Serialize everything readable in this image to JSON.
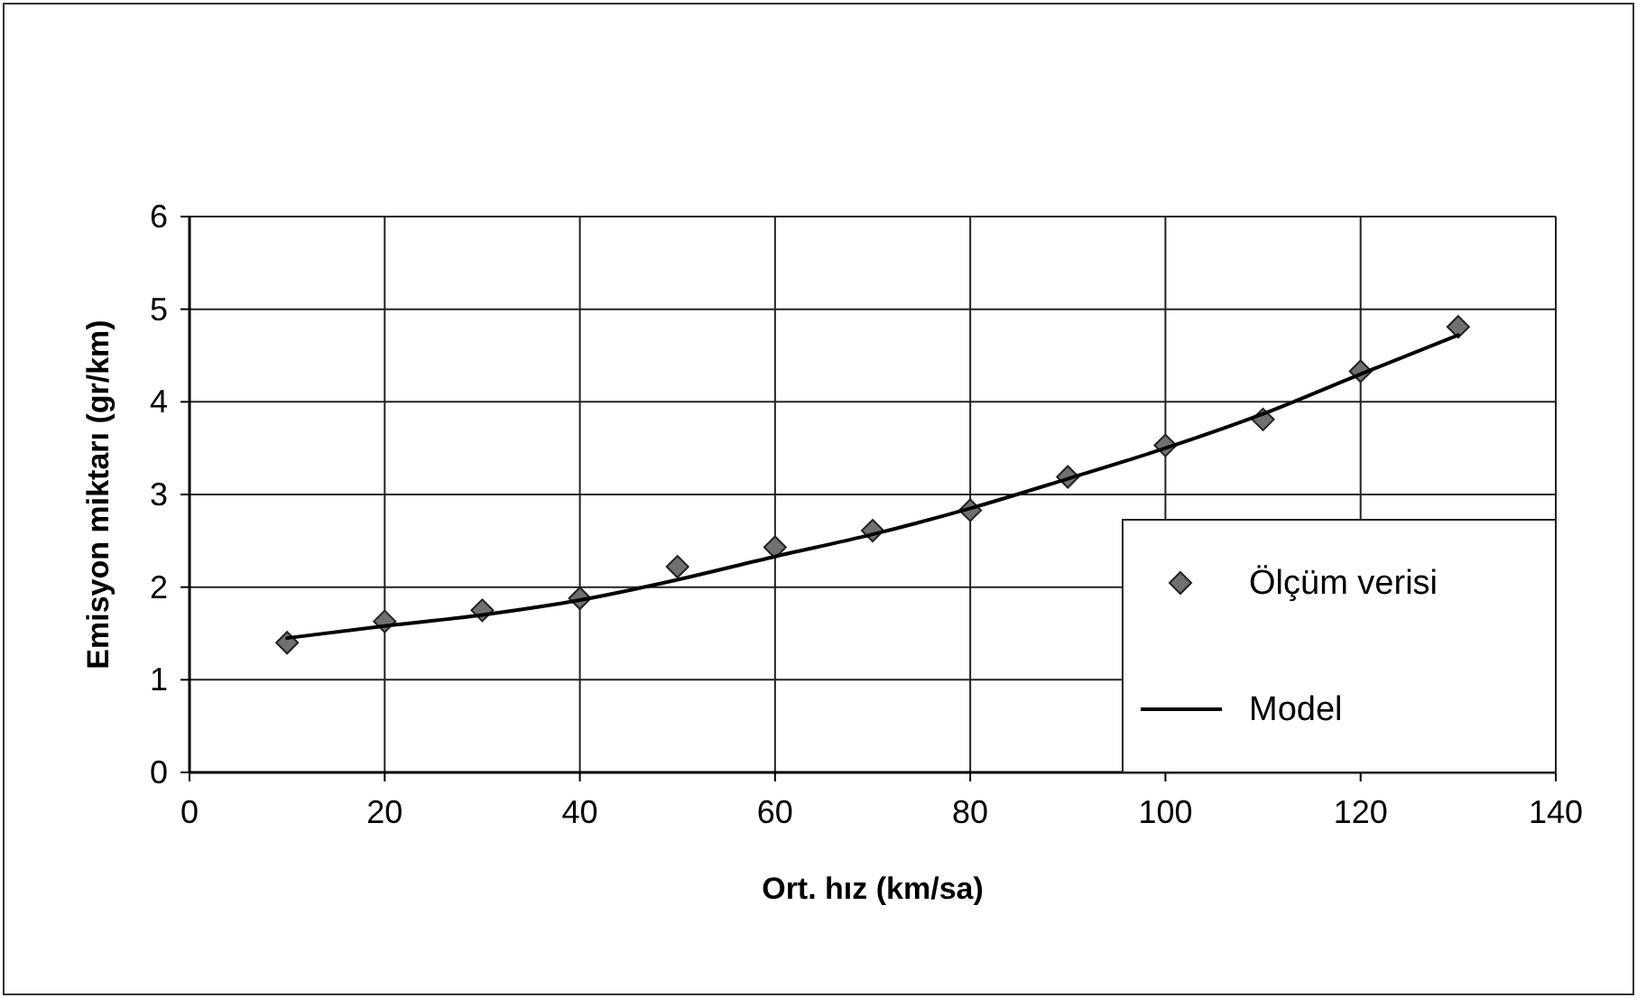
{
  "chart_data": {
    "type": "scatter",
    "xlabel": "Ort. hız (km/sa)",
    "ylabel": "Emisyon miktarı (gr/km)",
    "x": [
      10,
      20,
      30,
      40,
      50,
      60,
      70,
      80,
      90,
      100,
      110,
      120,
      130
    ],
    "series": [
      {
        "name": "Ölçüm verisi",
        "color": "#707070",
        "marker": "diamond",
        "values": [
          1.4,
          1.63,
          1.75,
          1.88,
          2.22,
          2.43,
          2.61,
          2.83,
          3.19,
          3.53,
          3.81,
          4.33,
          4.81
        ]
      },
      {
        "name": "Model",
        "type": "line",
        "color": "#000000",
        "line_style": "solid",
        "marker": "none",
        "values": [
          1.45,
          1.58,
          1.7,
          1.86,
          2.08,
          2.33,
          2.57,
          2.85,
          3.17,
          3.5,
          3.87,
          4.3,
          4.72
        ]
      }
    ],
    "xlim": [
      0,
      140
    ],
    "xticks": [
      0,
      20,
      40,
      60,
      80,
      100,
      120,
      140
    ],
    "ylim": [
      0,
      6
    ],
    "yticks": [
      0,
      1,
      2,
      3,
      4,
      5,
      6
    ],
    "grid": true,
    "legend": "bottom right"
  }
}
